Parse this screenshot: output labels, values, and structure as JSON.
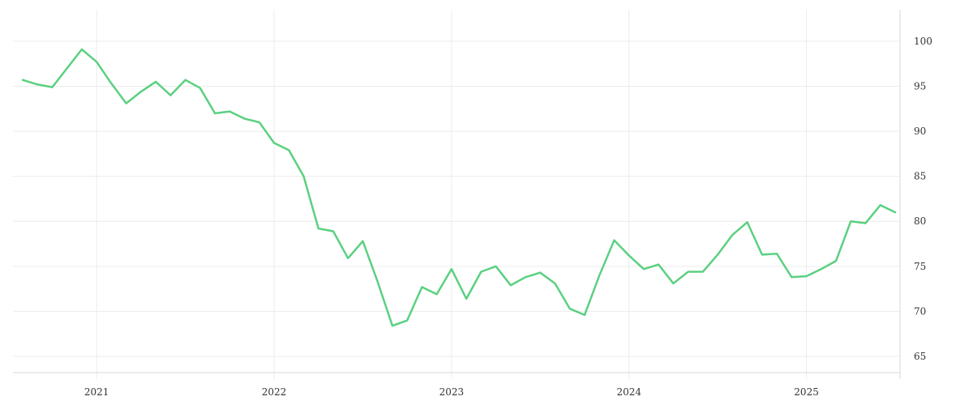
{
  "chart_data": {
    "type": "line",
    "title": "",
    "xlabel": "",
    "ylabel": "",
    "x_axis": {
      "ticks": [
        "2021",
        "2022",
        "2023",
        "2024",
        "2025"
      ],
      "range": [
        "2020-08",
        "2025-07"
      ]
    },
    "y_axis": {
      "position": "right",
      "ticks": [
        65,
        70,
        75,
        80,
        85,
        90,
        95,
        100
      ],
      "range": [
        63.2,
        103.5
      ]
    },
    "grid": true,
    "legend": "none",
    "series": [
      {
        "color": "#5bd081",
        "x": [
          "2020-08",
          "2020-09",
          "2020-10",
          "2020-11",
          "2020-12",
          "2021-01",
          "2021-02",
          "2021-03",
          "2021-04",
          "2021-05",
          "2021-06",
          "2021-07",
          "2021-08",
          "2021-09",
          "2021-10",
          "2021-11",
          "2021-12",
          "2022-01",
          "2022-02",
          "2022-03",
          "2022-04",
          "2022-05",
          "2022-06",
          "2022-07",
          "2022-08",
          "2022-09",
          "2022-10",
          "2022-11",
          "2022-12",
          "2023-01",
          "2023-02",
          "2023-03",
          "2023-04",
          "2023-05",
          "2023-06",
          "2023-07",
          "2023-08",
          "2023-09",
          "2023-10",
          "2023-11",
          "2023-12",
          "2024-01",
          "2024-02",
          "2024-03",
          "2024-04",
          "2024-05",
          "2024-06",
          "2024-07",
          "2024-08",
          "2024-09",
          "2024-10",
          "2024-11",
          "2024-12",
          "2025-01",
          "2025-02",
          "2025-03",
          "2025-04",
          "2025-05",
          "2025-06",
          "2025-07"
        ],
        "values": [
          95.7,
          95.2,
          94.9,
          97.0,
          99.1,
          97.7,
          95.3,
          93.1,
          94.4,
          95.5,
          94.0,
          95.7,
          94.8,
          92.0,
          92.2,
          91.4,
          91.0,
          88.7,
          87.9,
          85.0,
          79.2,
          78.9,
          75.9,
          77.8,
          73.3,
          68.4,
          69.0,
          72.7,
          71.9,
          74.7,
          71.4,
          74.4,
          75.0,
          72.9,
          73.8,
          74.3,
          73.1,
          70.3,
          69.6,
          74.0,
          77.9,
          76.2,
          74.7,
          75.2,
          73.1,
          74.4,
          74.4,
          76.3,
          78.5,
          79.9,
          76.3,
          76.4,
          73.8,
          73.9,
          74.7,
          75.6,
          80.0,
          79.8,
          81.8,
          81.0
        ]
      }
    ]
  }
}
